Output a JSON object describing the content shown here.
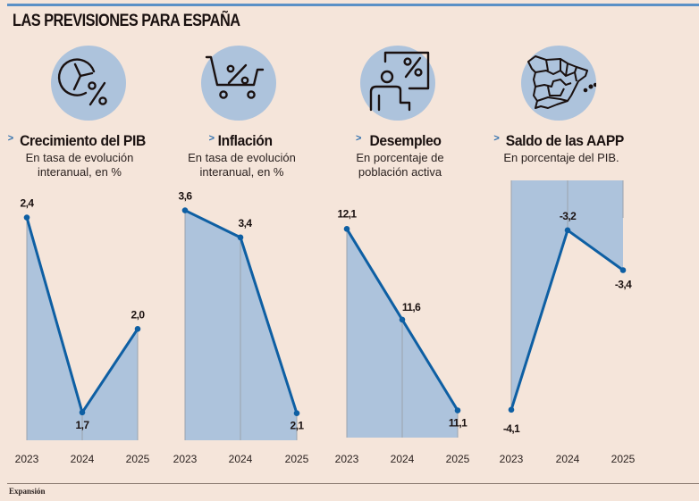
{
  "title": "LAS PREVISIONES PARA ESPAÑA",
  "source": "Expansión",
  "colors": {
    "background": "#f5e5da",
    "area_fill": "#adc3dc",
    "line": "#0e5fa3",
    "accent_rule": "#5a90c6",
    "grid": "#9aa3ad"
  },
  "panels": [
    {
      "title": "Crecimiento del PIB",
      "subtitle_lines": [
        "En tasa de evolución",
        "interanual, en %"
      ],
      "icon": "pie-chart-percent-icon"
    },
    {
      "title": "Inflación",
      "subtitle_lines": [
        "En tasa de evolución",
        "interanual, en %"
      ],
      "icon": "shopping-cart-percent-icon"
    },
    {
      "title": "Desempleo",
      "subtitle_lines": [
        "En porcentaje de",
        "población activa"
      ],
      "icon": "presenter-percent-icon"
    },
    {
      "title": "Saldo de las AAPP",
      "subtitle_lines": [
        "En porcentaje del PIB."
      ],
      "icon": "spain-map-icon"
    }
  ],
  "chart_data": [
    {
      "type": "area",
      "title": "Crecimiento del PIB",
      "subtitle": "En tasa de evolución interanual, en %",
      "categories": [
        "2023",
        "2024",
        "2025"
      ],
      "values": [
        2.4,
        1.7,
        2.0
      ],
      "value_labels": [
        "2,4",
        "1,7",
        "2,0"
      ],
      "xlabel": "",
      "ylabel": "",
      "ylim": [
        1.6,
        2.45
      ],
      "grid": true,
      "legend": "none"
    },
    {
      "type": "area",
      "title": "Inflación",
      "subtitle": "En tasa de evolución interanual, en %",
      "categories": [
        "2023",
        "2024",
        "2025"
      ],
      "values": [
        3.6,
        3.4,
        2.1
      ],
      "value_labels": [
        "3,6",
        "3,4",
        "2,1"
      ],
      "xlabel": "",
      "ylabel": "",
      "ylim": [
        1.9,
        3.65
      ],
      "grid": true,
      "legend": "none"
    },
    {
      "type": "area",
      "title": "Desempleo",
      "subtitle": "En porcentaje de población activa",
      "categories": [
        "2023",
        "2024",
        "2025"
      ],
      "values": [
        12.1,
        11.6,
        11.1
      ],
      "value_labels": [
        "12,1",
        "11,6",
        "11,1"
      ],
      "xlabel": "",
      "ylabel": "",
      "ylim": [
        10.95,
        12.2
      ],
      "grid": true,
      "legend": "none"
    },
    {
      "type": "area",
      "title": "Saldo de las AAPP",
      "subtitle": "En porcentaje del PIB.",
      "categories": [
        "2023",
        "2024",
        "2025"
      ],
      "values": [
        -4.1,
        -3.2,
        -3.4
      ],
      "value_labels": [
        "-4,1",
        "-3,2",
        "-3,4"
      ],
      "xlabel": "",
      "ylabel": "",
      "ylim": [
        -4.15,
        -2.95
      ],
      "grid": true,
      "legend": "none",
      "fill_direction": "down-from-zero"
    }
  ]
}
